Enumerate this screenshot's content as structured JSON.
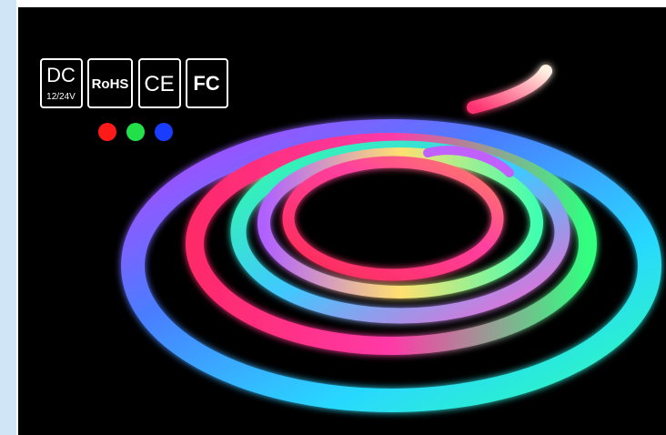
{
  "badges": [
    {
      "label": "DC",
      "sublabel": "12/24V"
    },
    {
      "label": "RoHS"
    },
    {
      "label": "CE"
    },
    {
      "label": "FC"
    }
  ]
}
